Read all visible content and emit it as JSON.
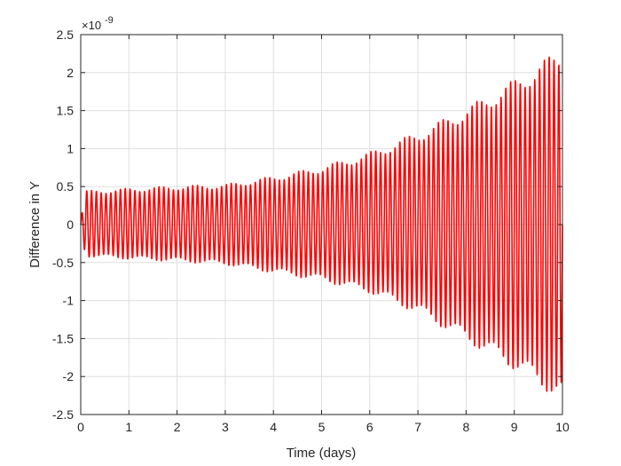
{
  "chart_data": {
    "type": "line",
    "title": "",
    "xlabel": "Time (days)",
    "ylabel": "Difference in Y",
    "y_exponent_label": "×10",
    "y_exponent_power": "-9",
    "xlim": [
      0,
      10
    ],
    "ylim": [
      -2.5,
      2.5
    ],
    "xticks": [
      0,
      1,
      2,
      3,
      4,
      5,
      6,
      7,
      8,
      9,
      10
    ],
    "yticks": [
      -2.5,
      -2,
      -1.5,
      -1,
      -0.5,
      0,
      0.5,
      1,
      1.5,
      2,
      2.5
    ],
    "xtick_labels": [
      "0",
      "1",
      "2",
      "3",
      "4",
      "5",
      "6",
      "7",
      "8",
      "9",
      "10"
    ],
    "ytick_labels": [
      "-2.5",
      "-2",
      "-1.5",
      "-1",
      "-0.5",
      "0",
      "0.5",
      "1",
      "1.5",
      "2",
      "2.5"
    ],
    "grid": true,
    "series": [
      {
        "color": "#ff0000",
        "oscillation_period_days": 0.1,
        "envelope": {
          "x": [
            0,
            0.1,
            1,
            2,
            3,
            4,
            5,
            6,
            7,
            8,
            9,
            10
          ],
          "upper": [
            0.05,
            0.42,
            0.45,
            0.48,
            0.5,
            0.6,
            0.72,
            0.9,
            1.15,
            1.45,
            1.8,
            2.2
          ],
          "lower": [
            -0.05,
            -0.4,
            -0.43,
            -0.46,
            -0.5,
            -0.6,
            -0.7,
            -0.85,
            -1.1,
            -1.45,
            -1.8,
            -2.2
          ]
        }
      }
    ]
  }
}
